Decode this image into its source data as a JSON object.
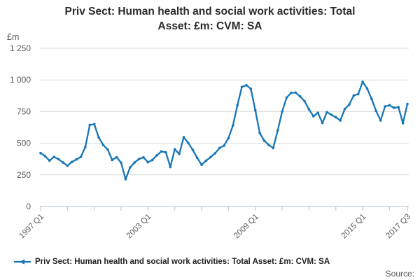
{
  "title": "Priv Sect: Human health and social work activities: Total Asset: £m: CVM: SA",
  "title_line1": "Priv Sect: Human health and social work activities: Total",
  "title_line2": "Asset: £m: CVM: SA",
  "y_axis_unit": "£m",
  "legend": {
    "label": "Priv Sect: Human health and social work activities: Total Asset: £m: CVM: SA"
  },
  "source_label": "Source:",
  "colors": {
    "line": "#1776b8",
    "grid": "#d9d9d9",
    "axis": "#c2cede",
    "tick_text": "#595959",
    "title_text": "#2b2b2b"
  },
  "chart_data": {
    "type": "line",
    "title": "Priv Sect: Human health and social work activities: Total Asset: £m: CVM: SA",
    "ylabel": "£m",
    "xlabel": "",
    "frequency": "quarterly",
    "x_start_label": "1997 Q1",
    "x_end_label": "2017 Q3",
    "ylim": [
      0,
      1250
    ],
    "grid": "horizontal",
    "legend_position": "bottom-left",
    "markers": true,
    "y_ticks": {
      "values": [
        0,
        250,
        500,
        750,
        1000,
        1250
      ],
      "labels": [
        "0",
        "250",
        "500",
        "750",
        "1 000",
        "1 250"
      ]
    },
    "x_tick_every_quarters": 6,
    "x_labels": [
      {
        "index": 0,
        "label": "1997 Q1"
      },
      {
        "index": 24,
        "label": "2003 Q1"
      },
      {
        "index": 48,
        "label": "2009 Q1"
      },
      {
        "index": 72,
        "label": "2015 Q1"
      },
      {
        "index": 82,
        "label": "2017 Q3"
      }
    ],
    "values": [
      422,
      398,
      362,
      392,
      374,
      348,
      322,
      352,
      372,
      392,
      470,
      645,
      650,
      545,
      486,
      450,
      368,
      390,
      346,
      216,
      308,
      348,
      375,
      388,
      350,
      368,
      405,
      435,
      428,
      312,
      452,
      415,
      548,
      502,
      448,
      385,
      330,
      362,
      390,
      420,
      462,
      481,
      540,
      640,
      800,
      945,
      958,
      930,
      760,
      580,
      520,
      487,
      462,
      600,
      750,
      860,
      898,
      900,
      870,
      833,
      768,
      713,
      740,
      660,
      745,
      725,
      705,
      680,
      770,
      806,
      877,
      888,
      985,
      932,
      850,
      755,
      680,
      790,
      800,
      780,
      785,
      658,
      810
    ]
  }
}
